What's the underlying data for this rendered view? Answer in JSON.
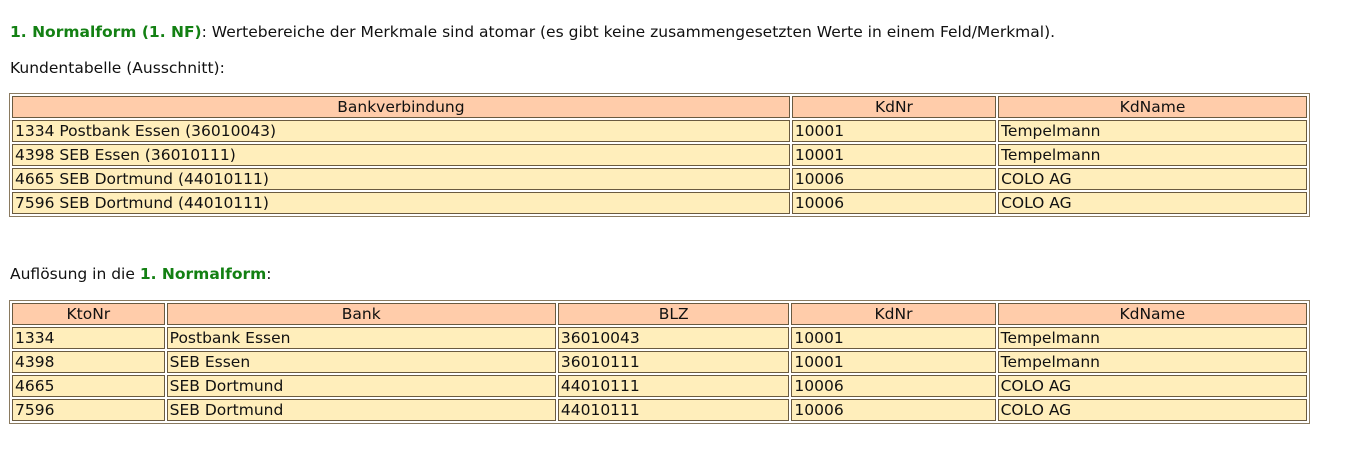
{
  "intro": {
    "term": "1. Normalform (1. NF)",
    "text": ": Wertebereiche der Merkmale sind atomar (es gibt keine zusammengesetzten Werte in einem Feld/Merkmal)."
  },
  "table1_caption": "Kundentabelle (Ausschnitt):",
  "table1": {
    "headers": [
      "Bankverbindung",
      "KdNr",
      "KdName"
    ],
    "rows": [
      [
        "1334 Postbank Essen (36010043)",
        "10001",
        "Tempelmann"
      ],
      [
        "4398 SEB Essen (36010111)",
        "10001",
        "Tempelmann"
      ],
      [
        "4665 SEB Dortmund (44010111)",
        "10006",
        "COLO AG"
      ],
      [
        "7596 SEB Dortmund (44010111)",
        "10006",
        "COLO AG"
      ]
    ]
  },
  "table2_caption": {
    "before": "Auflösung in die ",
    "term": "1. Normalform",
    "after": ":"
  },
  "table2": {
    "headers": [
      "KtoNr",
      "Bank",
      "BLZ",
      "KdNr",
      "KdName"
    ],
    "rows": [
      [
        "1334",
        "Postbank Essen",
        "36010043",
        "10001",
        "Tempelmann"
      ],
      [
        "4398",
        "SEB Essen",
        "36010111",
        "10001",
        "Tempelmann"
      ],
      [
        "4665",
        "SEB Dortmund",
        "44010111",
        "10006",
        "COLO AG"
      ],
      [
        "7596",
        "SEB Dortmund",
        "44010111",
        "10006",
        "COLO AG"
      ]
    ]
  },
  "colors": {
    "header": "#ffccaa",
    "cell": "#ffeebb",
    "accent": "#138013"
  }
}
